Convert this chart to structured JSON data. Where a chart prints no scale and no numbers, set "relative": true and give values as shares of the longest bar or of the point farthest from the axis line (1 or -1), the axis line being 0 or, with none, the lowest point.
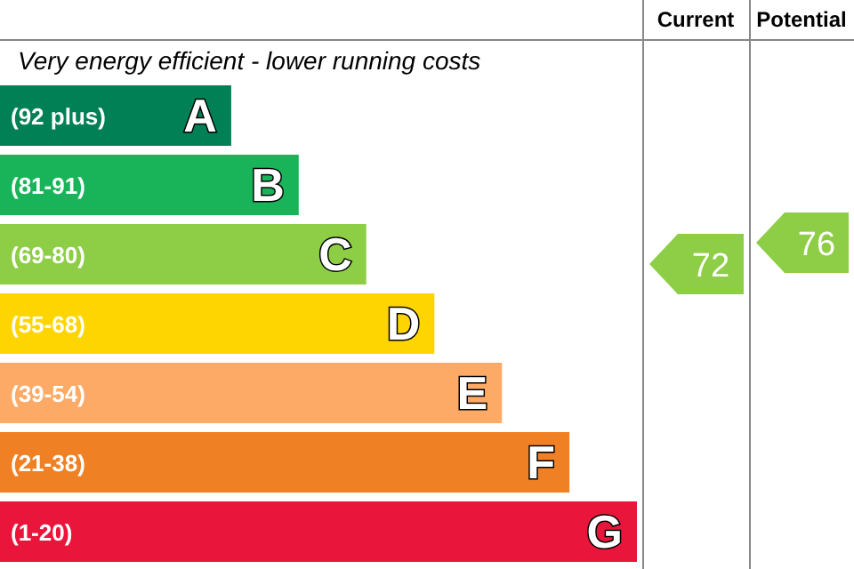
{
  "chart_data": {
    "type": "bar",
    "orientation": "horizontal",
    "relative": true,
    "title": "Very energy efficient - lower running costs",
    "categories": [
      "A",
      "B",
      "C",
      "D",
      "E",
      "F",
      "G"
    ],
    "values": [
      0.363,
      0.469,
      0.575,
      0.682,
      0.788,
      0.894,
      1
    ],
    "colors": [
      "#008054",
      "#19b459",
      "#8dce46",
      "#ffd500",
      "#fcaa65",
      "#ef8023",
      "#e9153b"
    ],
    "annotations": [
      "Current",
      "Potential",
      "72",
      "76",
      "(92 plus)",
      "(81-91)",
      "(69-80)",
      "(55-68)",
      "(39-54)",
      "(21-38)",
      "(1-20)"
    ]
  }
}
